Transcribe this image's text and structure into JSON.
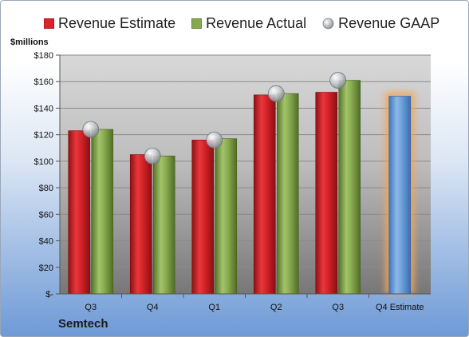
{
  "company": "Semtech",
  "colors": {
    "estimate": "#d8242a",
    "actual": "#86a84e",
    "gaap": "#b8bcc4",
    "forecast": "#6d9fd8",
    "forecast_glow": "#f2a55a"
  },
  "chart_data": {
    "type": "bar",
    "ylabel": "$millions",
    "ylim": [
      0,
      180
    ],
    "yticks": [
      0,
      20,
      40,
      60,
      80,
      100,
      120,
      140,
      160,
      180
    ],
    "ytick_labels": [
      "$-",
      "$20",
      "$40",
      "$60",
      "$80",
      "$100",
      "$120",
      "$140",
      "$160",
      "$180"
    ],
    "categories": [
      "Q3",
      "Q4",
      "Q1",
      "Q2",
      "Q3",
      "Q4 Estimate"
    ],
    "legend": "top",
    "grid": true,
    "series": [
      {
        "name": "Revenue Estimate",
        "kind": "bar",
        "values": [
          123,
          105,
          116,
          150,
          152,
          149
        ]
      },
      {
        "name": "Revenue Actual",
        "kind": "bar",
        "values": [
          124,
          104,
          117,
          151,
          161,
          null
        ]
      },
      {
        "name": "Revenue GAAP",
        "kind": "marker",
        "values": [
          124,
          104,
          116,
          151,
          161,
          null
        ]
      }
    ]
  }
}
